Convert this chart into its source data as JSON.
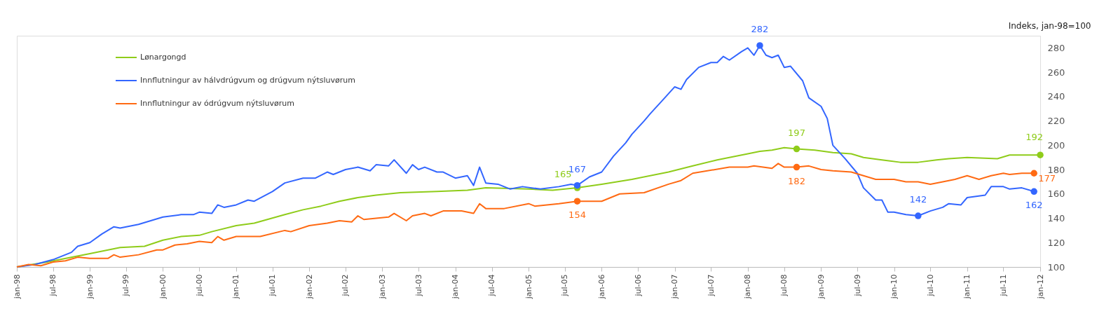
{
  "chart_data": {
    "type": "line",
    "ylabel": "Indeks, jan-98=100",
    "xlim": [
      "1998-01",
      "2012-01"
    ],
    "xticks": [
      {
        "value": "1998-01",
        "label": "jan-98"
      },
      {
        "value": "1998-07",
        "label": "jul-98"
      },
      {
        "value": "1999-01",
        "label": "jan-99"
      },
      {
        "value": "1999-07",
        "label": "jul-99"
      },
      {
        "value": "2000-01",
        "label": "jan-00"
      },
      {
        "value": "2000-07",
        "label": "jul-00"
      },
      {
        "value": "2001-01",
        "label": "jan-01"
      },
      {
        "value": "2001-07",
        "label": "jul-01"
      },
      {
        "value": "2002-01",
        "label": "jan-02"
      },
      {
        "value": "2002-07",
        "label": "jul-02"
      },
      {
        "value": "2003-01",
        "label": "jan-03"
      },
      {
        "value": "2003-07",
        "label": "jul-03"
      },
      {
        "value": "2004-01",
        "label": "jan-04"
      },
      {
        "value": "2004-07",
        "label": "jul-04"
      },
      {
        "value": "2005-01",
        "label": "jan-05"
      },
      {
        "value": "2005-07",
        "label": "jul-05"
      },
      {
        "value": "2006-01",
        "label": "jan-06"
      },
      {
        "value": "2006-07",
        "label": "jul-06"
      },
      {
        "value": "2007-01",
        "label": "jan-07"
      },
      {
        "value": "2007-07",
        "label": "jul-07"
      },
      {
        "value": "2008-01",
        "label": "jan-08"
      },
      {
        "value": "2008-07",
        "label": "jul-08"
      },
      {
        "value": "2009-01",
        "label": "jan-09"
      },
      {
        "value": "2009-07",
        "label": "jul-09"
      },
      {
        "value": "2010-01",
        "label": "jan-10"
      },
      {
        "value": "2010-07",
        "label": "jul-10"
      },
      {
        "value": "2011-01",
        "label": "jan-11"
      },
      {
        "value": "2011-07",
        "label": "jul-11"
      },
      {
        "value": "2012-01",
        "label": "jan-12"
      }
    ],
    "ylim": [
      100,
      290
    ],
    "yticks": [
      100,
      120,
      140,
      160,
      180,
      200,
      220,
      240,
      260,
      280
    ],
    "grid": false,
    "legend": "top left",
    "series": [
      {
        "name": "Lønargongd",
        "color": "#8fcc1a",
        "x": [
          "1998-01",
          "1998-06",
          "1999-01",
          "1999-06",
          "1999-10",
          "2000-01",
          "2000-04",
          "2000-07",
          "2000-09",
          "2001-01",
          "2001-04",
          "2001-09",
          "2001-12",
          "2002-03",
          "2002-06",
          "2002-09",
          "2002-12",
          "2003-04",
          "2003-10",
          "2004-03",
          "2004-06",
          "2005-01",
          "2005-05",
          "2005-09",
          "2006-01",
          "2006-06",
          "2006-12",
          "2007-04",
          "2007-08",
          "2007-10",
          "2008-01",
          "2008-03",
          "2008-05",
          "2008-07",
          "2008-09",
          "2008-12",
          "2009-03",
          "2009-06",
          "2009-08",
          "2009-11",
          "2010-02",
          "2010-05",
          "2010-08",
          "2010-10",
          "2011-01",
          "2011-06",
          "2011-08",
          "2012-01"
        ],
        "values": [
          100,
          104,
          111,
          116,
          117,
          122,
          125,
          126,
          129,
          134,
          136,
          143,
          147,
          150,
          154,
          157,
          159,
          161,
          162,
          163,
          165,
          164,
          163,
          165,
          168,
          172,
          178,
          183,
          188,
          190,
          193,
          195,
          196,
          198,
          197,
          196,
          194,
          193,
          190,
          188,
          186,
          186,
          188,
          189,
          190,
          189,
          192,
          192
        ],
        "value_labels": [
          null,
          null,
          null,
          null,
          null,
          null,
          null,
          null,
          null,
          null,
          null,
          null,
          null,
          null,
          null,
          null,
          null,
          null,
          null,
          null,
          null,
          null,
          null,
          "165",
          null,
          null,
          null,
          null,
          null,
          null,
          null,
          null,
          null,
          null,
          "197",
          null,
          null,
          null,
          null,
          null,
          null,
          null,
          null,
          null,
          null,
          null,
          null,
          "192"
        ]
      },
      {
        "name": "Innflutningur av hálvdrúgvum og drúgvum nýtsluvørum",
        "color": "#3366ff",
        "x": [
          "1998-01",
          "1998-04",
          "1998-07",
          "1998-10",
          "1998-11",
          "1999-01",
          "1999-03",
          "1999-05",
          "1999-06",
          "1999-09",
          "1999-11",
          "2000-01",
          "2000-04",
          "2000-06",
          "2000-07",
          "2000-09",
          "2000-10",
          "2000-11",
          "2001-01",
          "2001-03",
          "2001-04",
          "2001-07",
          "2001-09",
          "2001-12",
          "2002-02",
          "2002-04",
          "2002-05",
          "2002-07",
          "2002-09",
          "2002-11",
          "2002-12",
          "2003-02",
          "2003-03",
          "2003-05",
          "2003-06",
          "2003-07",
          "2003-08",
          "2003-10",
          "2003-11",
          "2004-01",
          "2004-03",
          "2004-04",
          "2004-05",
          "2004-06",
          "2004-08",
          "2004-10",
          "2004-12",
          "2005-03",
          "2005-06",
          "2005-08",
          "2005-09",
          "2005-11",
          "2006-01",
          "2006-03",
          "2006-05",
          "2006-06",
          "2006-08",
          "2006-09",
          "2006-11",
          "2007-01",
          "2007-02",
          "2007-03",
          "2007-05",
          "2007-07",
          "2007-08",
          "2007-09",
          "2007-10",
          "2007-12",
          "2008-01",
          "2008-02",
          "2008-03",
          "2008-04",
          "2008-05",
          "2008-06",
          "2008-07",
          "2008-08",
          "2008-10",
          "2008-11",
          "2009-01",
          "2009-02",
          "2009-03",
          "2009-05",
          "2009-07",
          "2009-08",
          "2009-10",
          "2009-11",
          "2009-12",
          "2010-01",
          "2010-03",
          "2010-05",
          "2010-07",
          "2010-09",
          "2010-10",
          "2010-12",
          "2011-01",
          "2011-04",
          "2011-05",
          "2011-07",
          "2011-08",
          "2011-10",
          "2011-12"
        ],
        "values": [
          100,
          102,
          106,
          112,
          117,
          120,
          127,
          133,
          132,
          135,
          138,
          141,
          143,
          143,
          145,
          144,
          151,
          149,
          151,
          155,
          154,
          162,
          169,
          173,
          173,
          178,
          176,
          180,
          182,
          179,
          184,
          183,
          188,
          177,
          184,
          180,
          182,
          178,
          178,
          173,
          175,
          167,
          182,
          169,
          168,
          164,
          166,
          164,
          166,
          168,
          167,
          174,
          178,
          191,
          202,
          209,
          220,
          226,
          237,
          248,
          246,
          254,
          264,
          268,
          268,
          273,
          270,
          277,
          280,
          274,
          282,
          274,
          272,
          274,
          264,
          265,
          253,
          239,
          232,
          222,
          200,
          189,
          177,
          165,
          155,
          155,
          145,
          145,
          143,
          142,
          146,
          149,
          152,
          151,
          157,
          159,
          166,
          166,
          164,
          165,
          162
        ],
        "value_labels": [
          null,
          null,
          null,
          null,
          null,
          null,
          null,
          null,
          null,
          null,
          null,
          null,
          null,
          null,
          null,
          null,
          null,
          null,
          null,
          null,
          null,
          null,
          null,
          null,
          null,
          null,
          null,
          null,
          null,
          null,
          null,
          null,
          null,
          null,
          null,
          null,
          null,
          null,
          null,
          null,
          null,
          null,
          null,
          null,
          null,
          null,
          null,
          null,
          null,
          null,
          "167",
          null,
          null,
          null,
          null,
          null,
          null,
          null,
          null,
          null,
          null,
          null,
          null,
          null,
          null,
          null,
          null,
          null,
          null,
          null,
          "282",
          null,
          null,
          null,
          null,
          null,
          null,
          null,
          null,
          null,
          null,
          null,
          null,
          null,
          null,
          null,
          null,
          null,
          null,
          "142",
          null,
          null,
          null,
          null,
          null,
          null,
          null,
          null,
          null,
          null,
          "162"
        ]
      },
      {
        "name": "Innflutningur av ódrúgvum nýtsluvørum",
        "color": "#ff6a13",
        "x": [
          "1998-01",
          "1998-03",
          "1998-05",
          "1998-07",
          "1998-09",
          "1998-11",
          "1999-01",
          "1999-04",
          "1999-05",
          "1999-06",
          "1999-09",
          "1999-12",
          "2000-01",
          "2000-03",
          "2000-05",
          "2000-07",
          "2000-09",
          "2000-10",
          "2000-11",
          "2001-01",
          "2001-05",
          "2001-09",
          "2001-10",
          "2002-01",
          "2002-04",
          "2002-06",
          "2002-08",
          "2002-09",
          "2002-10",
          "2002-12",
          "2003-02",
          "2003-03",
          "2003-05",
          "2003-06",
          "2003-08",
          "2003-09",
          "2003-11",
          "2004-02",
          "2004-04",
          "2004-05",
          "2004-06",
          "2004-09",
          "2005-01",
          "2005-02",
          "2005-06",
          "2005-09",
          "2006-01",
          "2006-04",
          "2006-08",
          "2006-12",
          "2007-02",
          "2007-04",
          "2007-10",
          "2008-01",
          "2008-02",
          "2008-05",
          "2008-06",
          "2008-07",
          "2008-09",
          "2008-11",
          "2009-01",
          "2009-03",
          "2009-06",
          "2009-08",
          "2009-10",
          "2010-01",
          "2010-03",
          "2010-05",
          "2010-07",
          "2010-09",
          "2010-11",
          "2011-01",
          "2011-03",
          "2011-05",
          "2011-07",
          "2011-08",
          "2011-10",
          "2011-12"
        ],
        "values": [
          100,
          102,
          101,
          104,
          105,
          108,
          107,
          107,
          110,
          108,
          110,
          114,
          114,
          118,
          119,
          121,
          120,
          125,
          122,
          125,
          125,
          130,
          129,
          134,
          136,
          138,
          137,
          142,
          139,
          140,
          141,
          144,
          138,
          142,
          144,
          142,
          146,
          146,
          144,
          152,
          148,
          148,
          152,
          150,
          152,
          154,
          154,
          160,
          161,
          168,
          171,
          177,
          182,
          182,
          183,
          181,
          185,
          182,
          182,
          183,
          180,
          179,
          178,
          175,
          172,
          172,
          170,
          170,
          168,
          170,
          172,
          175,
          172,
          175,
          177,
          176,
          177,
          177
        ],
        "value_labels": [
          null,
          null,
          null,
          null,
          null,
          null,
          null,
          null,
          null,
          null,
          null,
          null,
          null,
          null,
          null,
          null,
          null,
          null,
          null,
          null,
          null,
          null,
          null,
          null,
          null,
          null,
          null,
          null,
          null,
          null,
          null,
          null,
          null,
          null,
          null,
          null,
          null,
          null,
          null,
          null,
          null,
          null,
          null,
          null,
          null,
          "154",
          null,
          null,
          null,
          null,
          null,
          null,
          null,
          null,
          null,
          null,
          null,
          null,
          "182",
          null,
          null,
          null,
          null,
          null,
          null,
          null,
          null,
          null,
          null,
          null,
          null,
          null,
          null,
          null,
          null,
          null,
          null,
          "177"
        ]
      }
    ]
  }
}
